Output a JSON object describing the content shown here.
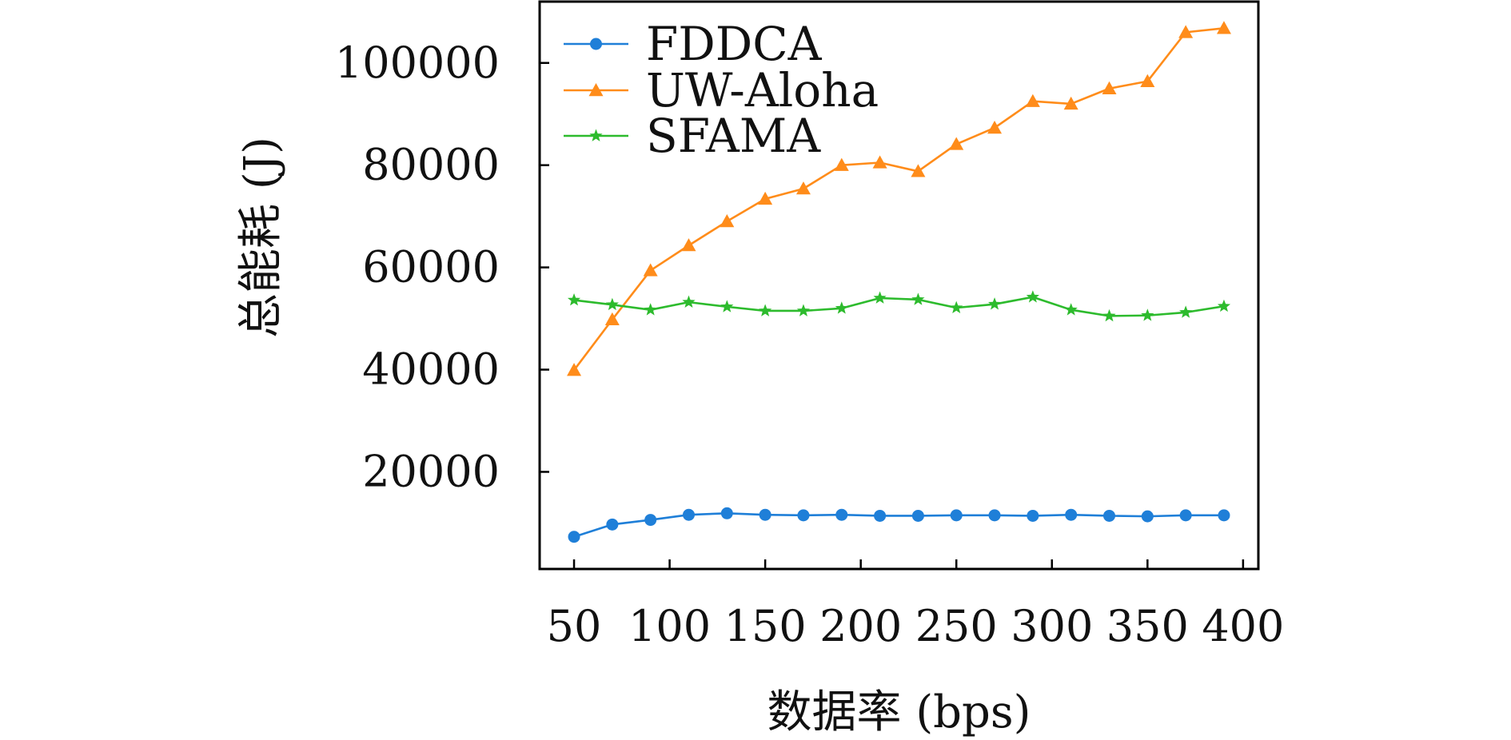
{
  "chart_data": {
    "type": "line",
    "xlabel": "数据率 (bps)",
    "ylabel": "总能耗 (J)",
    "xlim": [
      32,
      408
    ],
    "ylim": [
      1000,
      112000
    ],
    "xticks": [
      50,
      100,
      150,
      200,
      250,
      300,
      350,
      400
    ],
    "yticks": [
      20000,
      40000,
      60000,
      80000,
      100000
    ],
    "xtick_labels": [
      "50",
      "100",
      "150",
      "200",
      "250",
      "300",
      "350",
      "400"
    ],
    "ytick_labels": [
      "20000",
      "40000",
      "60000",
      "80000",
      "100000"
    ],
    "legend_position": "top-left",
    "grid": false,
    "x": [
      50,
      70,
      90,
      110,
      130,
      150,
      170,
      190,
      210,
      230,
      250,
      270,
      290,
      310,
      330,
      350,
      370,
      390
    ],
    "series": [
      {
        "name": "FDDCA",
        "color": "#1f7fd8",
        "marker": "circle",
        "values": [
          7300,
          9700,
          10600,
          11600,
          11900,
          11600,
          11500,
          11600,
          11400,
          11400,
          11500,
          11500,
          11400,
          11600,
          11400,
          11300,
          11500,
          11500
        ]
      },
      {
        "name": "UW-Aloha",
        "color": "#ff8c1a",
        "marker": "triangle",
        "values": [
          39900,
          49800,
          59400,
          64300,
          69000,
          73400,
          75400,
          80000,
          80500,
          78800,
          84100,
          87300,
          92500,
          92000,
          95000,
          96400,
          106000,
          106800
        ]
      },
      {
        "name": "SFAMA",
        "color": "#2dbb2d",
        "marker": "star",
        "values": [
          53600,
          52700,
          51700,
          53200,
          52300,
          51500,
          51500,
          52000,
          54000,
          53700,
          52100,
          52800,
          54200,
          51700,
          50500,
          50600,
          51200,
          52400
        ]
      }
    ]
  }
}
